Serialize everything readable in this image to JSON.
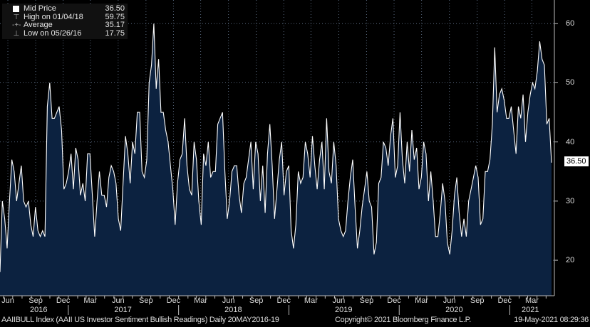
{
  "legend": [
    {
      "label": "Mid Price",
      "value": "36.50",
      "icon": "square-swatch"
    },
    {
      "label": "High on 01/04/18",
      "value": "59.75",
      "icon": "high-marker"
    },
    {
      "label": "Average",
      "value": "35.17",
      "icon": "average-marker"
    },
    {
      "label": "Low on 05/26/16",
      "value": "17.75",
      "icon": "low-marker"
    }
  ],
  "footer": {
    "title": "AAIIBULL Index (AAII US Investor Sentiment Bullish Readings)  Daily 20MAY2016-19",
    "copyright": "Copyright© 2021 Bloomberg Finance L.P.",
    "timestamp": "19-May-2021 08:29:36"
  },
  "colors": {
    "fill": "#0c2240",
    "line": "#ffffff",
    "grid": "#5a6a80"
  },
  "chart_data": {
    "type": "area",
    "title": "AAIIBULL Index (AAII US Investor Sentiment Bullish Readings)",
    "ylim": [
      14,
      64
    ],
    "yticks": [
      "60",
      "50",
      "40",
      "30",
      "20"
    ],
    "last_value_label": "36.50",
    "xtick_months": [
      "Jun",
      "Sep",
      "Dec",
      "Mar",
      "Jun",
      "Sep",
      "Dec",
      "Mar",
      "Jun",
      "Sep",
      "Dec",
      "Mar",
      "Jun",
      "Sep",
      "Dec",
      "Mar",
      "Jun",
      "Sep",
      "Dec",
      "Mar"
    ],
    "xtick_years": [
      "2016",
      "2017",
      "2018",
      "2019",
      "2020",
      "2021"
    ],
    "x_range": [
      "2016-05-20",
      "2021-05-19"
    ],
    "grid": true,
    "series": [
      {
        "name": "Mid Price",
        "values": [
          18,
          30,
          27,
          22,
          30,
          37,
          35,
          30,
          33,
          36,
          30,
          29,
          30,
          26,
          24,
          29,
          25,
          24,
          25,
          24,
          46,
          50,
          44,
          44,
          45,
          46,
          42,
          32,
          33,
          35,
          38,
          32,
          39,
          37,
          31,
          33,
          30,
          38,
          38,
          31,
          24,
          30,
          35,
          31,
          31,
          29,
          34,
          36,
          35,
          33,
          27,
          25,
          33,
          41,
          38,
          33,
          40,
          38,
          45,
          45,
          35,
          34,
          37,
          50,
          53,
          60,
          49,
          54,
          45,
          45,
          42,
          40,
          36,
          32,
          26,
          33,
          37,
          38,
          44,
          36,
          32,
          31,
          40,
          37,
          30,
          26,
          38,
          36,
          40,
          34,
          35,
          35,
          43,
          44,
          45,
          35,
          27,
          30,
          35,
          36,
          36,
          31,
          28,
          33,
          34,
          37,
          40,
          32,
          40,
          38,
          30,
          36,
          28,
          38,
          43,
          36,
          27,
          32,
          37,
          40,
          31,
          35,
          36,
          25,
          22,
          26,
          35,
          33,
          34,
          40,
          38,
          34,
          41,
          36,
          32,
          37,
          40,
          32,
          44,
          35,
          33,
          40,
          36,
          27,
          25,
          24,
          25,
          30,
          34,
          37,
          29,
          22,
          25,
          29,
          32,
          35,
          30,
          29,
          21,
          23,
          33,
          34,
          40,
          39,
          36,
          41,
          44,
          34,
          36,
          45,
          37,
          33,
          40,
          35,
          42,
          37,
          39,
          32,
          34,
          40,
          38,
          30,
          35,
          30,
          24,
          24,
          28,
          33,
          30,
          23,
          21,
          25,
          31,
          34,
          28,
          24,
          27,
          24,
          30,
          32,
          34,
          36,
          34,
          26,
          27,
          35,
          35,
          37,
          43,
          56,
          45,
          48,
          49,
          47,
          44,
          44,
          46,
          42,
          38,
          46,
          44,
          48,
          40,
          45,
          48,
          50,
          49,
          52,
          57,
          54,
          53,
          43,
          44,
          36.5
        ]
      }
    ]
  }
}
